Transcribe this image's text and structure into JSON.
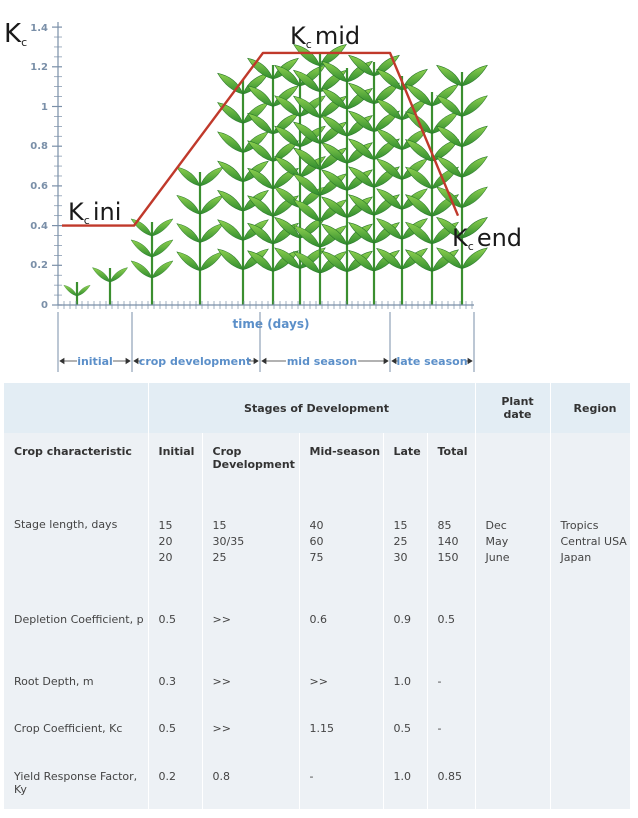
{
  "chart_data": {
    "type": "line",
    "y_axis_label": "K",
    "y_axis_label_sub": "c",
    "y_ticks": [
      "0",
      "0.2",
      "0.4",
      "0.6",
      "0.8",
      "1",
      "1.2",
      "1.4"
    ],
    "ylim": [
      0,
      1.4
    ],
    "x_axis_label": "time (days)",
    "kc_ini": {
      "k": "K",
      "sub": "c",
      "name": "ini"
    },
    "kc_mid": {
      "k": "K",
      "sub": "c",
      "name": "mid"
    },
    "kc_end": {
      "k": "K",
      "sub": "c",
      "name": "end"
    },
    "stages": [
      "initial",
      "crop development",
      "mid season",
      "late season"
    ],
    "curve": {
      "color": "#c0392b",
      "points": [
        {
          "phase": "initial-start",
          "kc": 0.4
        },
        {
          "phase": "initial-end",
          "kc": 0.4
        },
        {
          "phase": "development-end",
          "kc": 1.27
        },
        {
          "phase": "mid-end",
          "kc": 1.27
        },
        {
          "phase": "late-end",
          "kc": 0.45
        }
      ]
    }
  },
  "table": {
    "header_row1": {
      "stages_of_development": "Stages of Development",
      "plant_date": "Plant date",
      "region": "Region"
    },
    "header_row2": {
      "crop_characteristic": "Crop characteristic",
      "initial": "Initial",
      "crop_development": "Crop Development",
      "mid_season": "Mid-season",
      "late": "Late",
      "total": "Total"
    },
    "rows": [
      {
        "label": "Stage length, days",
        "initial": "15\n20\n20",
        "development": "15\n30/35\n25",
        "mid": "40\n60\n75",
        "late": "15\n25\n30",
        "total": "85\n140\n150",
        "plant": "Dec\nMay\nJune",
        "region": "Tropics\nCentral USA\nJapan"
      },
      {
        "label": "Depletion Coefficient, p",
        "initial": "0.5",
        "development": ">>",
        "mid": "0.6",
        "late": "0.9",
        "total": "0.5",
        "plant": "",
        "region": ""
      },
      {
        "label": "Root Depth, m",
        "initial": "0.3",
        "development": ">>",
        "mid": ">>",
        "late": "1.0",
        "total": "-",
        "plant": "",
        "region": ""
      },
      {
        "label": "Crop Coefficient, Kc",
        "initial": "0.5",
        "development": ">>",
        "mid": "1.15",
        "late": "0.5",
        "total": "-",
        "plant": "",
        "region": ""
      },
      {
        "label": "Yield Response Factor, Ky",
        "initial": "0.2",
        "development": "0.8",
        "mid": "-",
        "late": "1.0",
        "total": "0.85",
        "plant": "",
        "region": ""
      }
    ]
  }
}
